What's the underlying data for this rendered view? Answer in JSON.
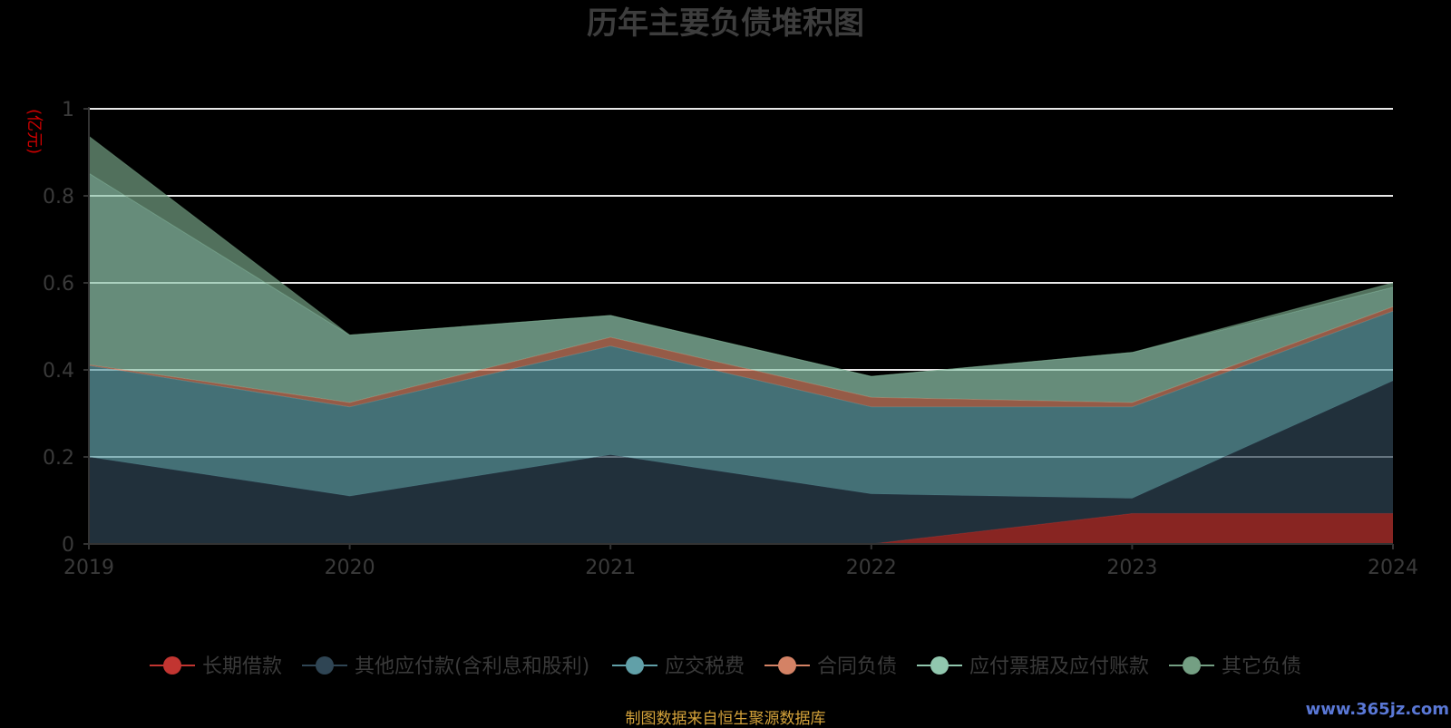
{
  "chart_data": {
    "type": "area",
    "title": "历年主要负债堆积图",
    "ylabel": "(亿元)",
    "x": [
      "2019",
      "2020",
      "2021",
      "2022",
      "2023",
      "2024"
    ],
    "ylim": [
      0,
      1
    ],
    "yticks": [
      "0",
      "0.2",
      "0.4",
      "0.6",
      "0.8",
      "1"
    ],
    "yticks_values": [
      0,
      0.2,
      0.4,
      0.6,
      0.8,
      1
    ],
    "stacked": true,
    "grid": true,
    "legend_position": "bottom",
    "series": [
      {
        "name": "长期借款",
        "color": "#c23531",
        "values": [
          0,
          0,
          0,
          0,
          0.07,
          0.07
        ]
      },
      {
        "name": "其他应付款(含利息和股利)",
        "color": "#2f4554",
        "values": [
          0.2,
          0.11,
          0.205,
          0.115,
          0.035,
          0.305
        ]
      },
      {
        "name": "应交税费",
        "color": "#61a0a8",
        "values": [
          0.21,
          0.205,
          0.25,
          0.2,
          0.21,
          0.16
        ]
      },
      {
        "name": "合同负债",
        "color": "#d48265",
        "values": [
          0.002,
          0.01,
          0.02,
          0.022,
          0.01,
          0.01
        ]
      },
      {
        "name": "应付票据及应付账款",
        "color": "#91c7ae",
        "values": [
          0.44,
          0.155,
          0.05,
          0.048,
          0.115,
          0.045
        ]
      },
      {
        "name": "其它负债",
        "color": "#749f83",
        "values": [
          0.085,
          0.0,
          0.0,
          0.0,
          0.0,
          0.01
        ]
      }
    ]
  },
  "footer": {
    "source": "制图数据来自恒生聚源数据库",
    "watermark": "www.365jz.com"
  }
}
